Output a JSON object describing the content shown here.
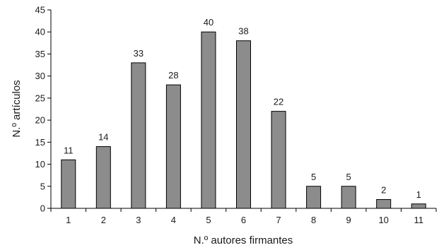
{
  "chart_data": {
    "type": "bar",
    "categories": [
      "1",
      "2",
      "3",
      "4",
      "5",
      "6",
      "7",
      "8",
      "9",
      "10",
      "11"
    ],
    "values": [
      11,
      14,
      33,
      28,
      40,
      38,
      22,
      5,
      5,
      2,
      1
    ],
    "data_labels": [
      "11",
      "14",
      "33",
      "28",
      "40",
      "38",
      "22",
      "5",
      "5",
      "2",
      "1"
    ],
    "xlabel": "N.º autores firmantes",
    "ylabel": "N.º artículos",
    "ylim": [
      0,
      45
    ],
    "yticks": [
      "0",
      "5",
      "10",
      "15",
      "20",
      "25",
      "30",
      "35",
      "40",
      "45"
    ],
    "grid": false,
    "colors": {
      "bar_fill": "#8c8c8c",
      "bar_stroke": "#000000",
      "axis": "#000000"
    }
  }
}
